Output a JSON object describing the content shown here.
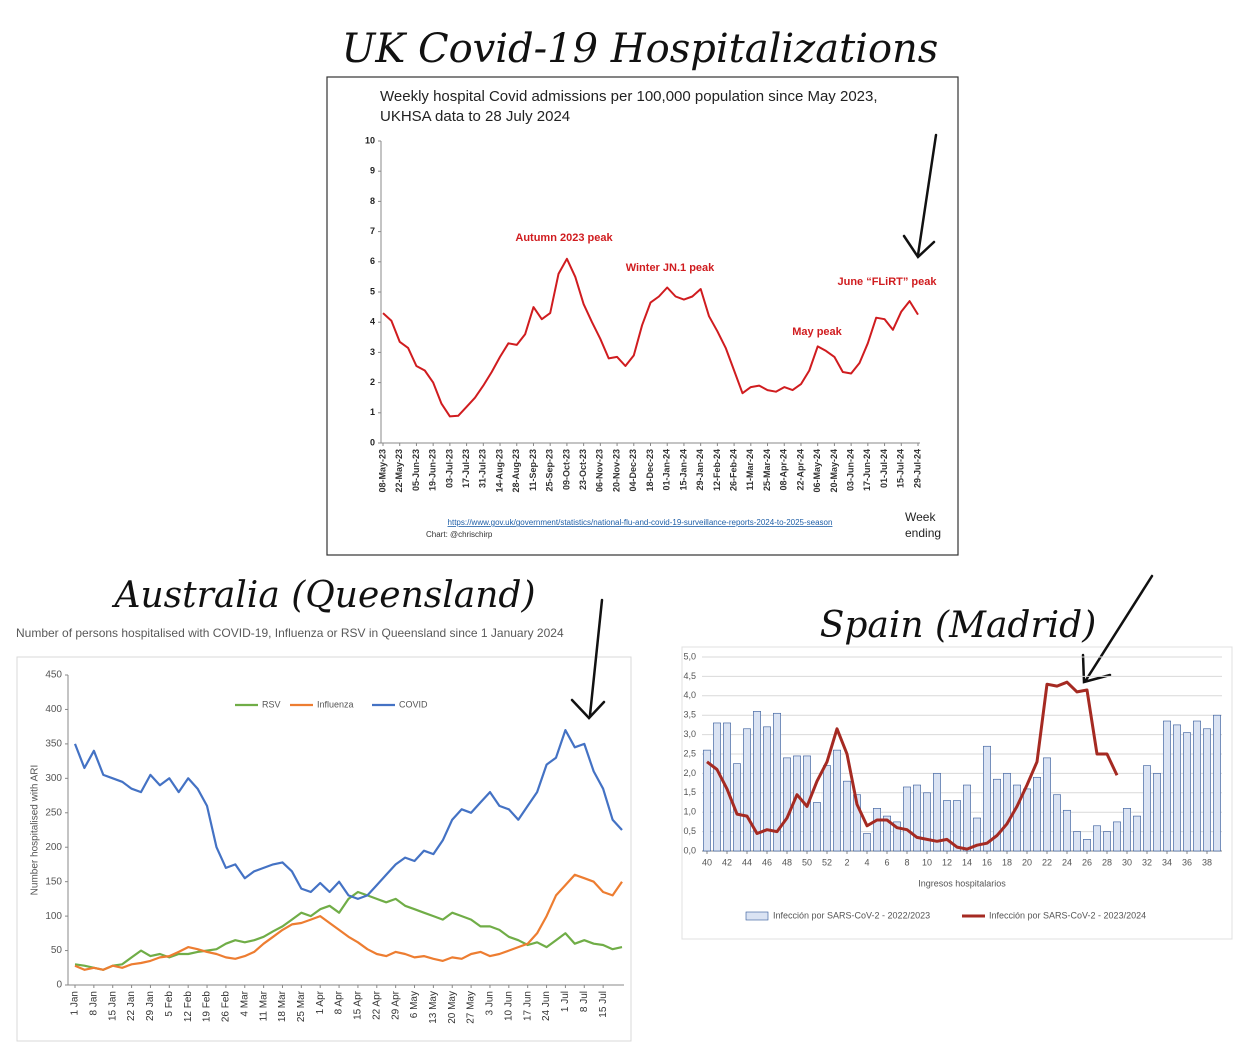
{
  "chart_data": [
    {
      "type": "line",
      "heading": "UK Covid-19 Hospitalizations",
      "title": "Weekly hospital Covid admissions per 100,000 population since May 2023,",
      "subtitle": "UKHSA data to 28 July 2024",
      "categories": [
        "08-May-23",
        null,
        "22-May-23",
        null,
        "05-Jun-23",
        null,
        "19-Jun-23",
        null,
        "03-Jul-23",
        null,
        "17-Jul-23",
        null,
        "31-Jul-23",
        null,
        "14-Aug-23",
        null,
        "28-Aug-23",
        null,
        "11-Sep-23",
        null,
        "25-Sep-23",
        null,
        "09-Oct-23",
        null,
        "23-Oct-23",
        null,
        "06-Nov-23",
        null,
        "20-Nov-23",
        null,
        "04-Dec-23",
        null,
        "18-Dec-23",
        null,
        "01-Jan-24",
        null,
        "15-Jan-24",
        null,
        "29-Jan-24",
        null,
        "12-Feb-24",
        null,
        "26-Feb-24",
        null,
        "11-Mar-24",
        null,
        "25-Mar-24",
        null,
        "08-Apr-24",
        null,
        "22-Apr-24",
        null,
        "06-May-24",
        null,
        "20-May-24",
        null,
        "03-Jun-24",
        null,
        "17-Jun-24",
        null,
        "01-Jul-24",
        null,
        "15-Jul-24",
        null,
        "29-Jul-24"
      ],
      "values": [
        4.3,
        4.05,
        3.35,
        3.15,
        2.55,
        2.4,
        2.0,
        1.3,
        0.88,
        0.9,
        1.2,
        1.5,
        1.9,
        2.35,
        2.85,
        3.3,
        3.25,
        3.6,
        4.5,
        4.1,
        4.3,
        5.6,
        6.1,
        5.5,
        4.6,
        4.0,
        3.45,
        2.8,
        2.85,
        2.55,
        2.9,
        3.9,
        4.65,
        4.85,
        5.15,
        4.85,
        4.75,
        4.85,
        5.1,
        4.2,
        3.7,
        3.15,
        2.4,
        1.65,
        1.85,
        1.9,
        1.75,
        1.7,
        1.85,
        1.75,
        1.95,
        2.4,
        3.2,
        3.05,
        2.85,
        2.35,
        2.3,
        2.65,
        3.3,
        4.15,
        4.1,
        3.75,
        4.35,
        4.7,
        4.25
      ],
      "color": "#d01c1f",
      "ylim": [
        0,
        10
      ],
      "yticks": [
        0,
        1,
        2,
        3,
        4,
        5,
        6,
        7,
        8,
        9,
        10
      ],
      "grid": false,
      "annotations": [
        "Autumn 2023 peak",
        "Winter JN.1 peak",
        "May peak",
        "June “FLiRT” peak"
      ],
      "xlabel": "Week ending",
      "source": "https://www.gov.uk/government/statistics/national-flu-and-covid-19-surveillance-reports-2024-to-2025-season",
      "credit": "Chart: @chrischirp"
    },
    {
      "type": "line",
      "heading": "Australia (Queensland)",
      "title": "Number of persons hospitalised with COVID-19, Influenza or RSV in Queensland since 1 January 2024",
      "ylabel": "Number hospitalised with ARI",
      "categories": [
        "1 Jan",
        null,
        "8 Jan",
        null,
        "15 Jan",
        null,
        "22 Jan",
        null,
        "29 Jan",
        null,
        "5 Feb",
        null,
        "12 Feb",
        null,
        "19 Feb",
        null,
        "26 Feb",
        null,
        "4 Mar",
        null,
        "11 Mar",
        null,
        "18 Mar",
        null,
        "25 Mar",
        null,
        "1 Apr",
        null,
        "8 Apr",
        null,
        "15 Apr",
        null,
        "22 Apr",
        null,
        "29 Apr",
        null,
        "6 May",
        null,
        "13 May",
        null,
        "20 May",
        null,
        "27 May",
        null,
        "3 Jun",
        null,
        "10 Jun",
        null,
        "17 Jun",
        null,
        "24 Jun",
        null,
        "1 Jul",
        null,
        "8 Jul",
        null,
        "15 Jul",
        null,
        null
      ],
      "series": [
        {
          "name": "RSV",
          "color": "#70ad47",
          "values": [
            30,
            28,
            25,
            22,
            28,
            30,
            40,
            50,
            42,
            45,
            40,
            45,
            45,
            48,
            50,
            52,
            60,
            65,
            62,
            65,
            70,
            78,
            85,
            95,
            105,
            100,
            110,
            115,
            105,
            125,
            135,
            130,
            125,
            120,
            125,
            115,
            110,
            105,
            100,
            95,
            105,
            100,
            95,
            85,
            85,
            80,
            70,
            65,
            58,
            62,
            55,
            65,
            75,
            60,
            65,
            60,
            58,
            52,
            55
          ]
        },
        {
          "name": "Influenza",
          "color": "#ed7d31",
          "values": [
            28,
            22,
            25,
            22,
            28,
            25,
            30,
            32,
            35,
            40,
            42,
            48,
            55,
            52,
            48,
            45,
            40,
            38,
            42,
            48,
            60,
            70,
            80,
            88,
            90,
            95,
            100,
            90,
            80,
            70,
            62,
            52,
            45,
            42,
            48,
            45,
            40,
            42,
            38,
            35,
            40,
            38,
            45,
            48,
            42,
            45,
            50,
            55,
            60,
            75,
            100,
            130,
            145,
            160,
            155,
            150,
            135,
            130,
            150
          ]
        },
        {
          "name": "COVID",
          "color": "#4472c4",
          "values": [
            350,
            315,
            340,
            305,
            300,
            295,
            285,
            280,
            305,
            290,
            300,
            280,
            300,
            285,
            260,
            200,
            170,
            175,
            155,
            165,
            170,
            175,
            178,
            165,
            140,
            135,
            148,
            135,
            150,
            130,
            125,
            130,
            145,
            160,
            175,
            185,
            180,
            195,
            190,
            210,
            240,
            255,
            250,
            265,
            280,
            260,
            255,
            240,
            260,
            280,
            320,
            330,
            370,
            345,
            350,
            310,
            285,
            240,
            225
          ]
        }
      ],
      "ylim": [
        0,
        450
      ],
      "yticks": [
        0,
        50,
        100,
        150,
        200,
        250,
        300,
        350,
        400,
        450
      ],
      "grid": false,
      "legend": "top"
    },
    {
      "type": "combo",
      "heading": "Spain (Madrid)",
      "xlabel": "Ingresos hospitalarios",
      "categories": [
        "40",
        null,
        "42",
        null,
        "44",
        null,
        "46",
        null,
        "48",
        null,
        "50",
        null,
        "52",
        null,
        "2",
        null,
        "4",
        null,
        "6",
        null,
        "8",
        null,
        "10",
        null,
        "12",
        null,
        "14",
        null,
        "16",
        null,
        "18",
        null,
        "20",
        null,
        "22",
        null,
        "24",
        null,
        "26",
        null,
        "28",
        null,
        "30",
        null,
        "32",
        null,
        "34",
        null,
        "36",
        null,
        "38",
        null
      ],
      "series": [
        {
          "name": "Infección por SARS-CoV-2 - 2022/2023",
          "kind": "bar",
          "color": "#dae3f3",
          "values": [
            2.6,
            3.3,
            3.3,
            2.25,
            3.15,
            3.6,
            3.2,
            3.55,
            2.4,
            2.45,
            2.45,
            1.25,
            2.2,
            2.6,
            1.8,
            1.45,
            0.45,
            1.1,
            0.9,
            0.75,
            1.65,
            1.7,
            1.5,
            2.0,
            1.3,
            1.3,
            1.7,
            0.85,
            2.7,
            1.85,
            2.0,
            1.7,
            1.6,
            1.9,
            2.4,
            1.45,
            1.05,
            0.5,
            0.3,
            0.65,
            0.5,
            0.75,
            1.1,
            0.9,
            2.2,
            2.0,
            3.35,
            3.25,
            3.05,
            3.35,
            3.15,
            3.5
          ]
        },
        {
          "name": "Infección por SARS-CoV-2 - 2023/2024",
          "kind": "line",
          "color": "#a52a22",
          "values": [
            2.3,
            2.1,
            1.6,
            0.95,
            0.9,
            0.45,
            0.55,
            0.5,
            0.85,
            1.45,
            1.15,
            1.8,
            2.3,
            3.15,
            2.5,
            1.2,
            0.65,
            0.8,
            0.8,
            0.6,
            0.55,
            0.35,
            0.3,
            0.25,
            0.3,
            0.1,
            0.05,
            0.15,
            0.2,
            0.4,
            0.7,
            1.15,
            1.7,
            2.3,
            4.3,
            4.25,
            4.35,
            4.1,
            4.15,
            2.5,
            2.5,
            1.95,
            null,
            null,
            null,
            null,
            null,
            null,
            null,
            null,
            null,
            null
          ]
        }
      ],
      "ylim": [
        0,
        5
      ],
      "yticks": [
        {
          "value": 0,
          "label": "0,0"
        },
        {
          "value": 0.5,
          "label": "0,5"
        },
        {
          "value": 1,
          "label": "1,0"
        },
        {
          "value": 1.5,
          "label": "1,5"
        },
        {
          "value": 2,
          "label": "2,0"
        },
        {
          "value": 2.5,
          "label": "2,5"
        },
        {
          "value": 3,
          "label": "3,0"
        },
        {
          "value": 3.5,
          "label": "3,5"
        },
        {
          "value": 4,
          "label": "4,0"
        },
        {
          "value": 4.5,
          "label": "4,5"
        },
        {
          "value": 5,
          "label": "5,0"
        }
      ],
      "grid": true,
      "legend": "bottom"
    }
  ]
}
